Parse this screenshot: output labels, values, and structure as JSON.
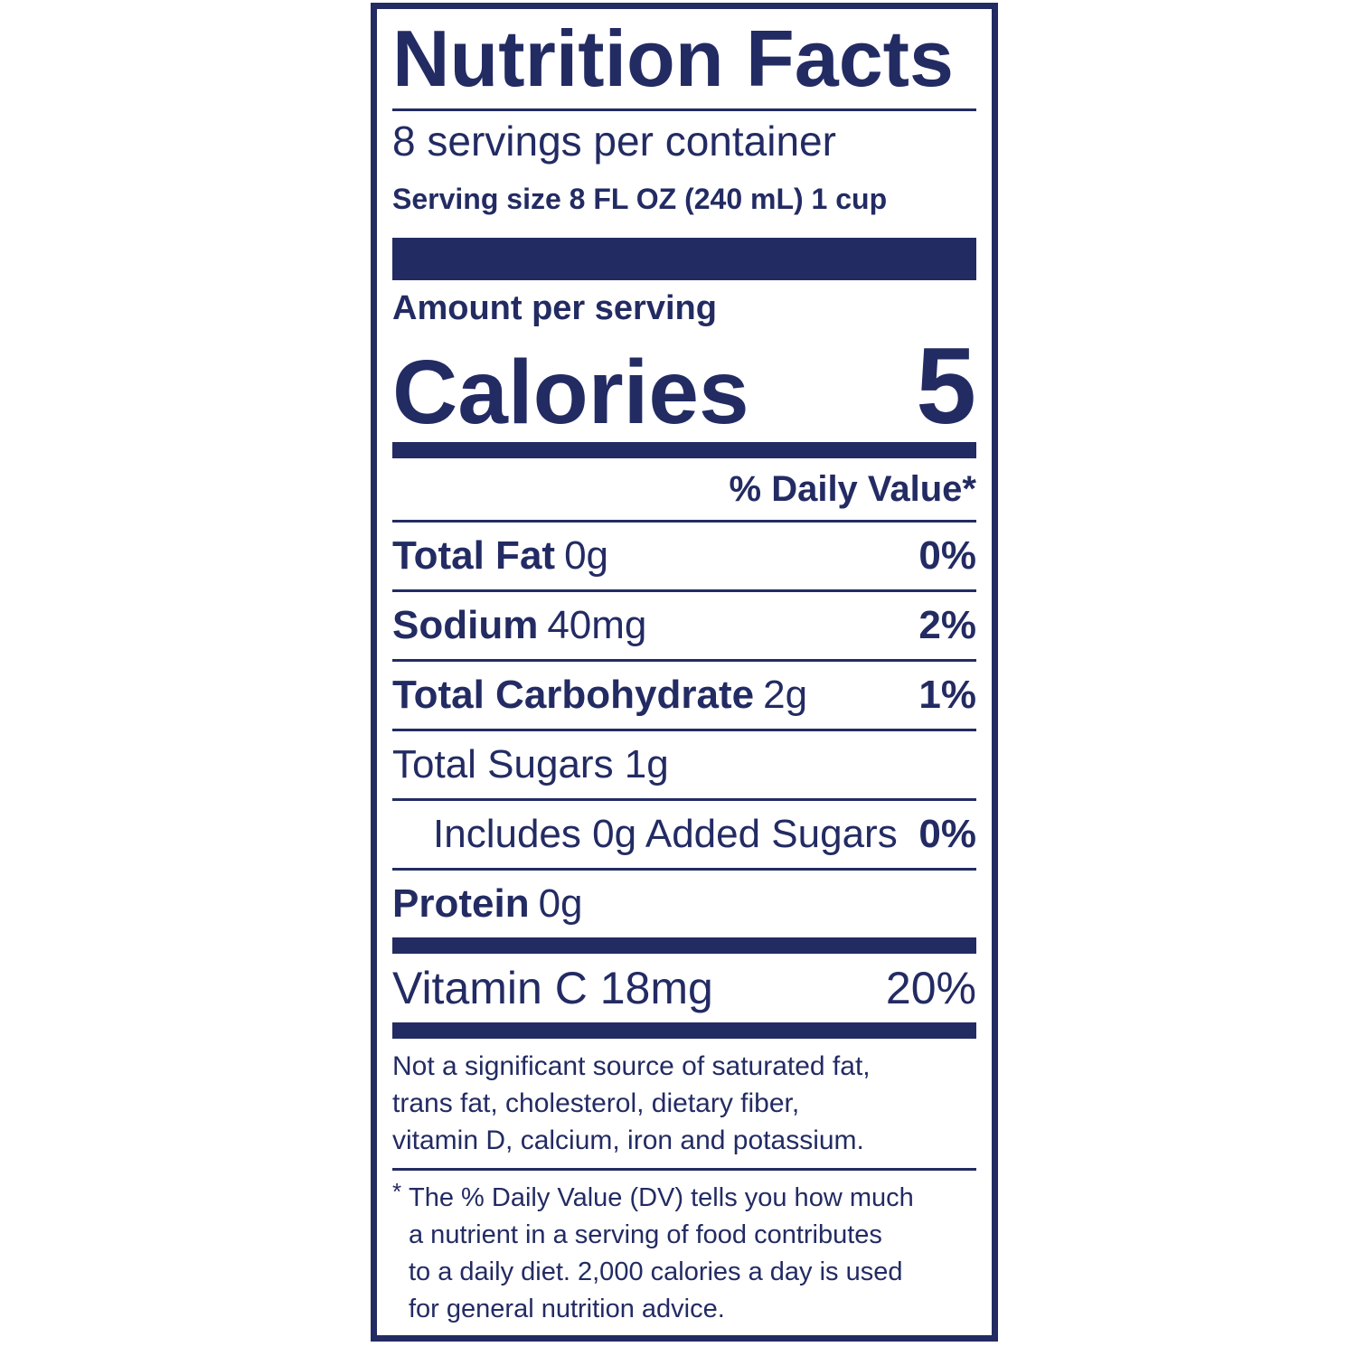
{
  "label": {
    "title": "Nutrition Facts",
    "servings_per_container": "8 servings per container",
    "serving_size": "Serving size 8 FL OZ (240 mL) 1 cup",
    "amount_per_serving": "Amount per serving",
    "calories_label": "Calories",
    "calories_value": "5",
    "daily_value_header": "% Daily Value*",
    "nutrients": [
      {
        "name": "Total Fat",
        "amount": "0g",
        "dv": "0%"
      },
      {
        "name": "Sodium",
        "amount": "40mg",
        "dv": "2%"
      },
      {
        "name": "Total Carbohydrate",
        "amount": "2g",
        "dv": "1%"
      },
      {
        "name": "Total Sugars 1g"
      },
      {
        "name": "Includes 0g Added Sugars",
        "dv": "0%"
      },
      {
        "name": "Protein",
        "amount": "0g"
      }
    ],
    "vitamins": [
      {
        "name": "Vitamin C 18mg",
        "dv": "20%"
      }
    ],
    "not_significant": [
      "Not a significant source of saturated fat,",
      "trans fat, cholesterol, dietary fiber,",
      "vitamin D, calcium, iron and potassium."
    ],
    "footnote_star": "*",
    "footnote": [
      "The % Daily Value (DV) tells you how much",
      "a nutrient in a serving of food contributes",
      "to a daily diet. 2,000 calories a day is used",
      "for general nutrition advice."
    ],
    "color": "#232b63"
  }
}
